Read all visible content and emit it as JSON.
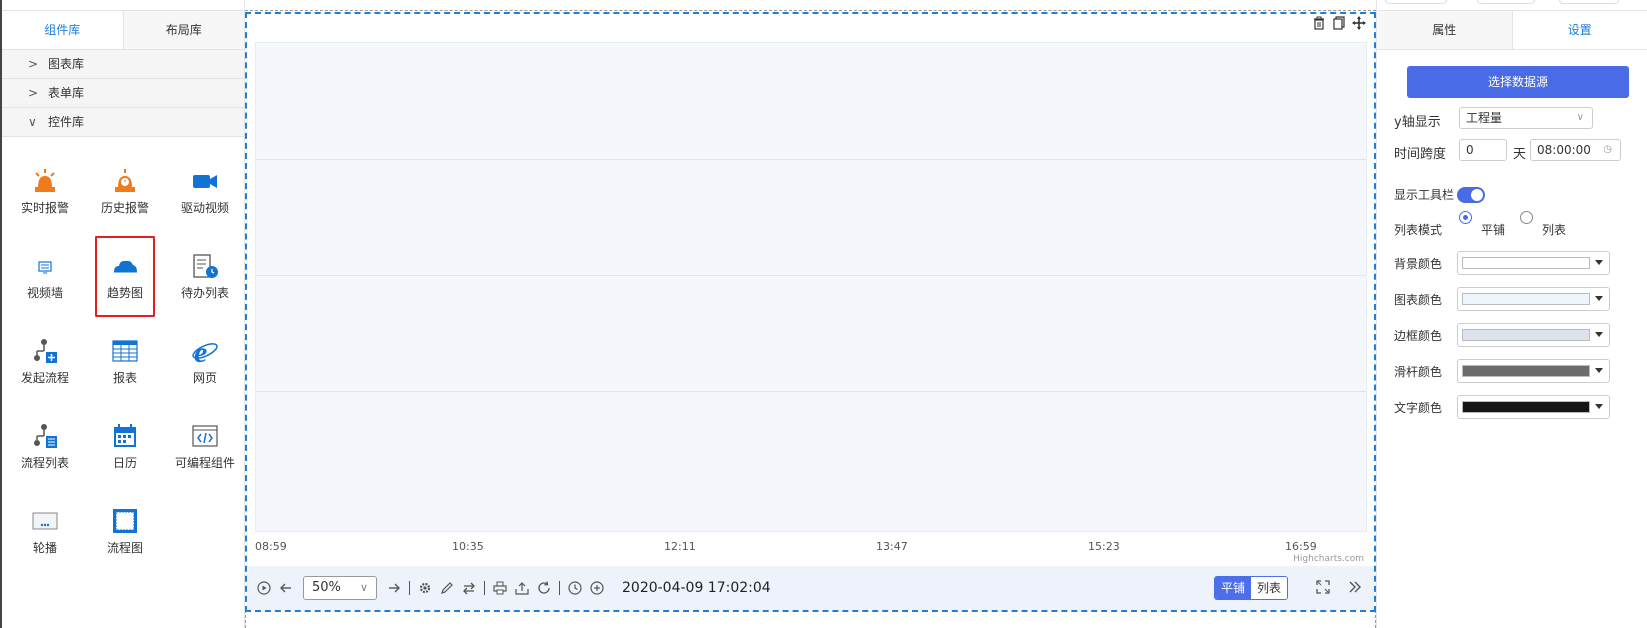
{
  "left_panel": {
    "tabs": [
      {
        "label": "组件库",
        "active": true
      },
      {
        "label": "布局库",
        "active": false
      }
    ],
    "sections": [
      {
        "label": "图表库",
        "expanded": false
      },
      {
        "label": "表单库",
        "expanded": false
      },
      {
        "label": "控件库",
        "expanded": true
      }
    ],
    "widgets": [
      {
        "label": "实时报警",
        "icon": "alarm-icon"
      },
      {
        "label": "历史报警",
        "icon": "alarm-history-icon"
      },
      {
        "label": "驱动视频",
        "icon": "video-camera-icon"
      },
      {
        "label": "视频墙",
        "icon": "video-wall-icon"
      },
      {
        "label": "趋势图",
        "icon": "trend-cloud-icon"
      },
      {
        "label": "待办列表",
        "icon": "todo-list-icon"
      },
      {
        "label": "发起流程",
        "icon": "start-flow-icon"
      },
      {
        "label": "报表",
        "icon": "table-icon"
      },
      {
        "label": "网页",
        "icon": "ie-browser-icon"
      },
      {
        "label": "流程列表",
        "icon": "flow-list-icon"
      },
      {
        "label": "日历",
        "icon": "calendar-icon"
      },
      {
        "label": "可编程组件",
        "icon": "code-icon"
      },
      {
        "label": "轮播",
        "icon": "carousel-icon"
      },
      {
        "label": "流程图",
        "icon": "flowchart-icon"
      }
    ]
  },
  "canvas": {
    "chart_data": {
      "type": "line",
      "x_ticks": [
        "08:59",
        "10:35",
        "12:11",
        "13:47",
        "15:23",
        "16:59"
      ],
      "series": [],
      "grid": true,
      "credit": "Highcharts.com"
    },
    "toolbar": {
      "zoom": "50%",
      "timestamp": "2020-04-09 17:02:04",
      "mode_tile": "平铺",
      "mode_list": "列表"
    }
  },
  "right_panel": {
    "tabs": [
      {
        "label": "属性",
        "active": false
      },
      {
        "label": "设置",
        "active": true
      }
    ],
    "datasource_button": "选择数据源",
    "y_axis_label": "y轴显示",
    "y_axis_value": "工程量",
    "time_span_label": "时间跨度",
    "time_span_days": "0",
    "time_span_unit": "天",
    "time_span_time": "08:00:00",
    "toolbar_label": "显示工具栏",
    "toolbar_on": true,
    "list_mode_label": "列表模式",
    "list_mode_tile": "平铺",
    "list_mode_list": "列表",
    "colors": [
      {
        "label": "背景颜色",
        "value": "#ffffff"
      },
      {
        "label": "图表颜色",
        "value": "#eef4fb"
      },
      {
        "label": "边框颜色",
        "value": "#dde3ec"
      },
      {
        "label": "滑杆颜色",
        "value": "#6b6b6b"
      },
      {
        "label": "文字颜色",
        "value": "#151515"
      }
    ]
  }
}
